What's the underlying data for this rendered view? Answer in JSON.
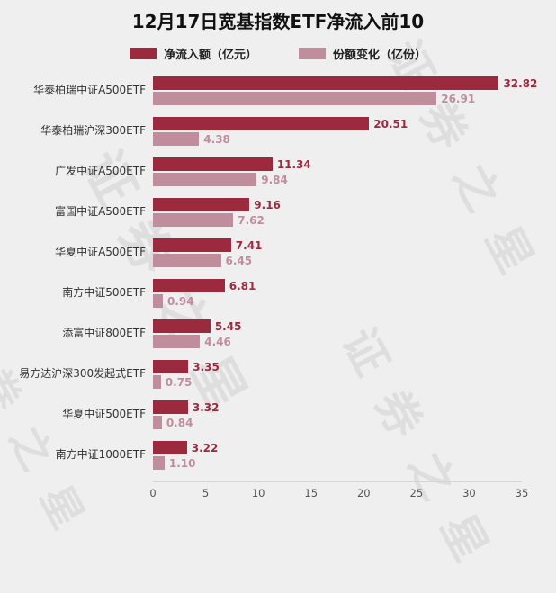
{
  "title": "12月17日宽基指数ETF净流入前10",
  "watermark": "证券之星",
  "legend": [
    {
      "label": "净流入额（亿元）",
      "color": "#9c2a3f"
    },
    {
      "label": "份额变化（亿份）",
      "color": "#bf8d9b"
    }
  ],
  "chart_data": {
    "type": "bar",
    "orientation": "horizontal",
    "title": "12月17日宽基指数ETF净流入前10",
    "categories": [
      "华泰柏瑞中证A500ETF",
      "华泰柏瑞沪深300ETF",
      "广发中证A500ETF",
      "富国中证A500ETF",
      "华夏中证A500ETF",
      "南方中证500ETF",
      "添富中证800ETF",
      "易方达沪深300发起式ETF",
      "华夏中证500ETF",
      "南方中证1000ETF"
    ],
    "series": [
      {
        "name": "净流入额（亿元）",
        "color": "#9c2a3f",
        "values": [
          32.82,
          20.51,
          11.34,
          9.16,
          7.41,
          6.81,
          5.45,
          3.35,
          3.32,
          3.22
        ]
      },
      {
        "name": "份额变化（亿份）",
        "color": "#bf8d9b",
        "values": [
          26.91,
          4.38,
          9.84,
          7.62,
          6.45,
          0.94,
          4.46,
          0.75,
          0.84,
          1.1
        ]
      }
    ],
    "xlim": [
      0,
      35
    ],
    "xticks": [
      0,
      5,
      10,
      15,
      20,
      25,
      30,
      35
    ],
    "legend_position": "top",
    "grid": false
  }
}
